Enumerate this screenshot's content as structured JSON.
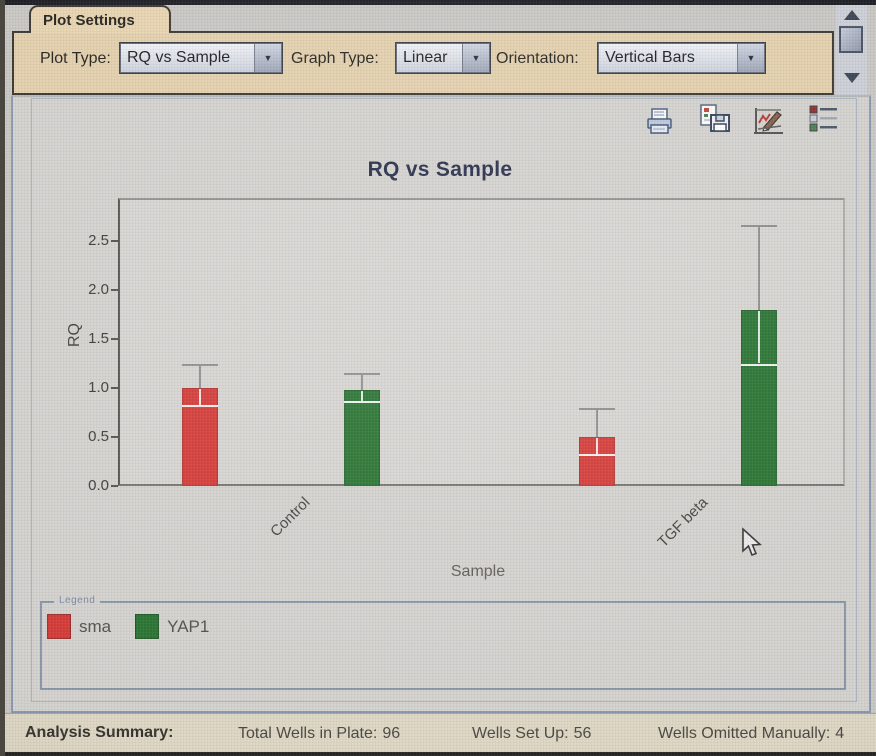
{
  "plot_settings": {
    "tab_label": "Plot Settings",
    "fields": [
      {
        "label": "Plot Type:",
        "value": "RQ vs Sample"
      },
      {
        "label": "Graph Type:",
        "value": "Linear"
      },
      {
        "label": "Orientation:",
        "value": "Vertical Bars"
      }
    ]
  },
  "toolbar": {
    "icons": [
      "print-icon",
      "export-plot-icon",
      "edit-plot-icon",
      "legend-list-icon"
    ]
  },
  "chart_data": {
    "type": "bar",
    "title": "RQ vs Sample",
    "xlabel": "Sample",
    "ylabel": "RQ",
    "ylim": [
      0,
      2.75
    ],
    "yticks": [
      0,
      0.5,
      1.0,
      1.5,
      2.0,
      2.5
    ],
    "grid": false,
    "legend_title": "Legend",
    "legend_position": "bottom",
    "categories": [
      "Control",
      "TGF beta"
    ],
    "series": [
      {
        "name": "sma",
        "color": "#d2322e",
        "values": [
          1.0,
          0.5
        ],
        "error_high": [
          1.25,
          0.8
        ],
        "error_low": [
          0.83,
          0.33
        ]
      },
      {
        "name": "YAP1",
        "color": "#1f6d28",
        "values": [
          0.98,
          1.8
        ],
        "error_high": [
          1.15,
          2.66
        ],
        "error_low": [
          0.87,
          1.25
        ]
      }
    ]
  },
  "analysis_summary": {
    "label": "Analysis Summary:",
    "items": [
      {
        "label": "Total Wells in Plate:",
        "value": "96"
      },
      {
        "label": "Wells Set Up:",
        "value": "56"
      },
      {
        "label": "Wells Omitted Manually:",
        "value": "4"
      }
    ]
  },
  "colors": {
    "panel_tan": "#e2cea9",
    "bar_red": "#d2322e",
    "bar_green": "#1f6d28",
    "title_navy": "#1b2240"
  }
}
